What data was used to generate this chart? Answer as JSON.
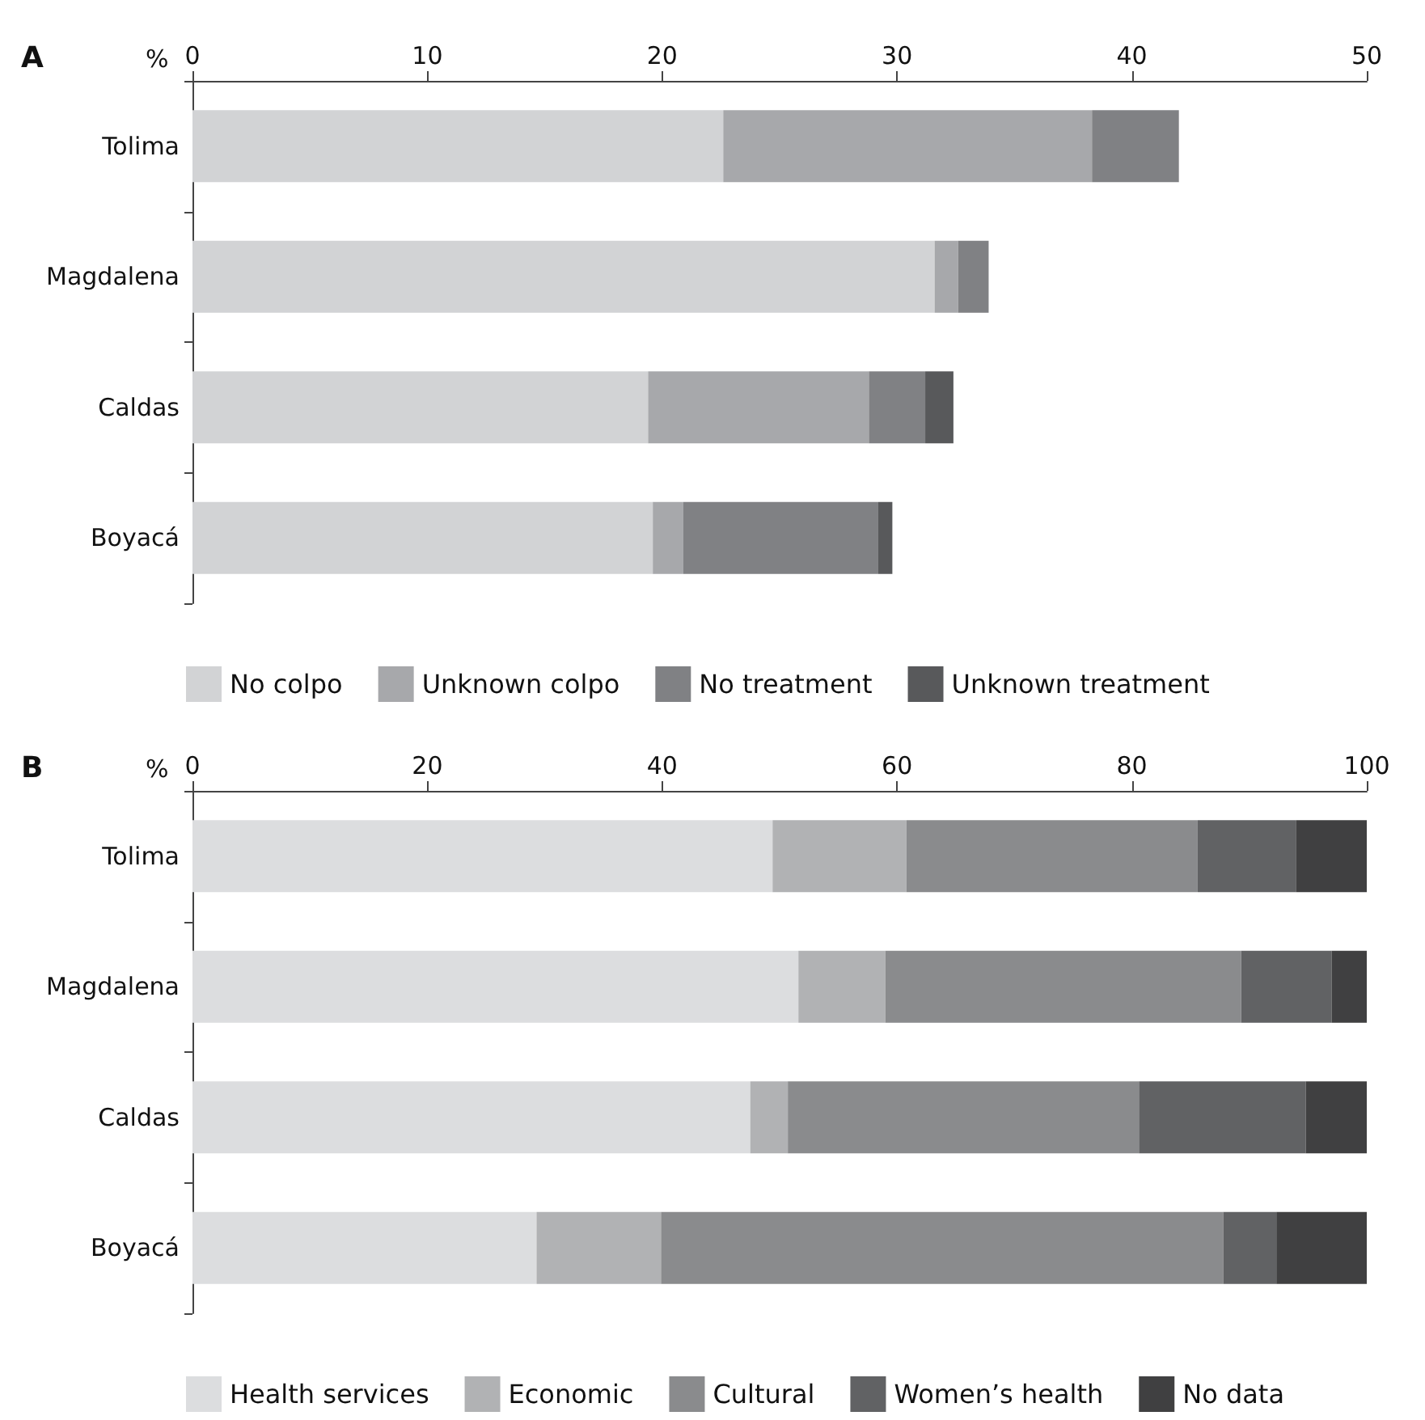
{
  "chart_data": [
    {
      "type": "bar",
      "title": "A",
      "xlabel": "%",
      "orientation": "horizontal",
      "stacked": true,
      "legend": "bottom",
      "grid": false,
      "categories": [
        "Tolima",
        "Magdalena",
        "Caldas",
        "Boyacá"
      ],
      "xlim": [
        0,
        50
      ],
      "xticks": [
        0,
        10,
        20,
        30,
        40,
        50
      ],
      "series": [
        {
          "name": "No colpo",
          "color": "#d2d3d5",
          "values": [
            22.6,
            31.6,
            19.4,
            19.6
          ]
        },
        {
          "name": "Unknown colpo",
          "color": "#a7a8ab",
          "values": [
            15.7,
            1.0,
            9.4,
            1.3
          ]
        },
        {
          "name": "No treatment",
          "color": "#808184",
          "values": [
            3.7,
            1.3,
            2.4,
            8.3
          ]
        },
        {
          "name": "Unknown treatment",
          "color": "#58595b",
          "values": [
            null,
            null,
            1.2,
            0.6
          ]
        }
      ]
    },
    {
      "type": "bar",
      "title": "B",
      "xlabel": "%",
      "orientation": "horizontal",
      "stacked": true,
      "legend": "bottom",
      "grid": false,
      "categories": [
        "Tolima",
        "Magdalena",
        "Caldas",
        "Boyacá"
      ],
      "xlim": [
        0,
        100
      ],
      "xticks": [
        0,
        20,
        40,
        60,
        80,
        100
      ],
      "series": [
        {
          "name": "Health services",
          "color": "#dcdddf",
          "values": [
            49.4,
            51.6,
            47.5,
            29.3
          ]
        },
        {
          "name": "Economic",
          "color": "#b1b2b4",
          "values": [
            11.4,
            7.4,
            3.2,
            10.6
          ]
        },
        {
          "name": "Cultural",
          "color": "#8a8b8d",
          "values": [
            24.8,
            30.3,
            29.9,
            47.9
          ]
        },
        {
          "name": "Women’s health",
          "color": "#616264",
          "values": [
            8.4,
            7.7,
            14.2,
            4.5
          ]
        },
        {
          "name": "No data",
          "color": "#404041",
          "values": [
            6.0,
            3.0,
            5.2,
            7.7
          ]
        }
      ]
    }
  ]
}
